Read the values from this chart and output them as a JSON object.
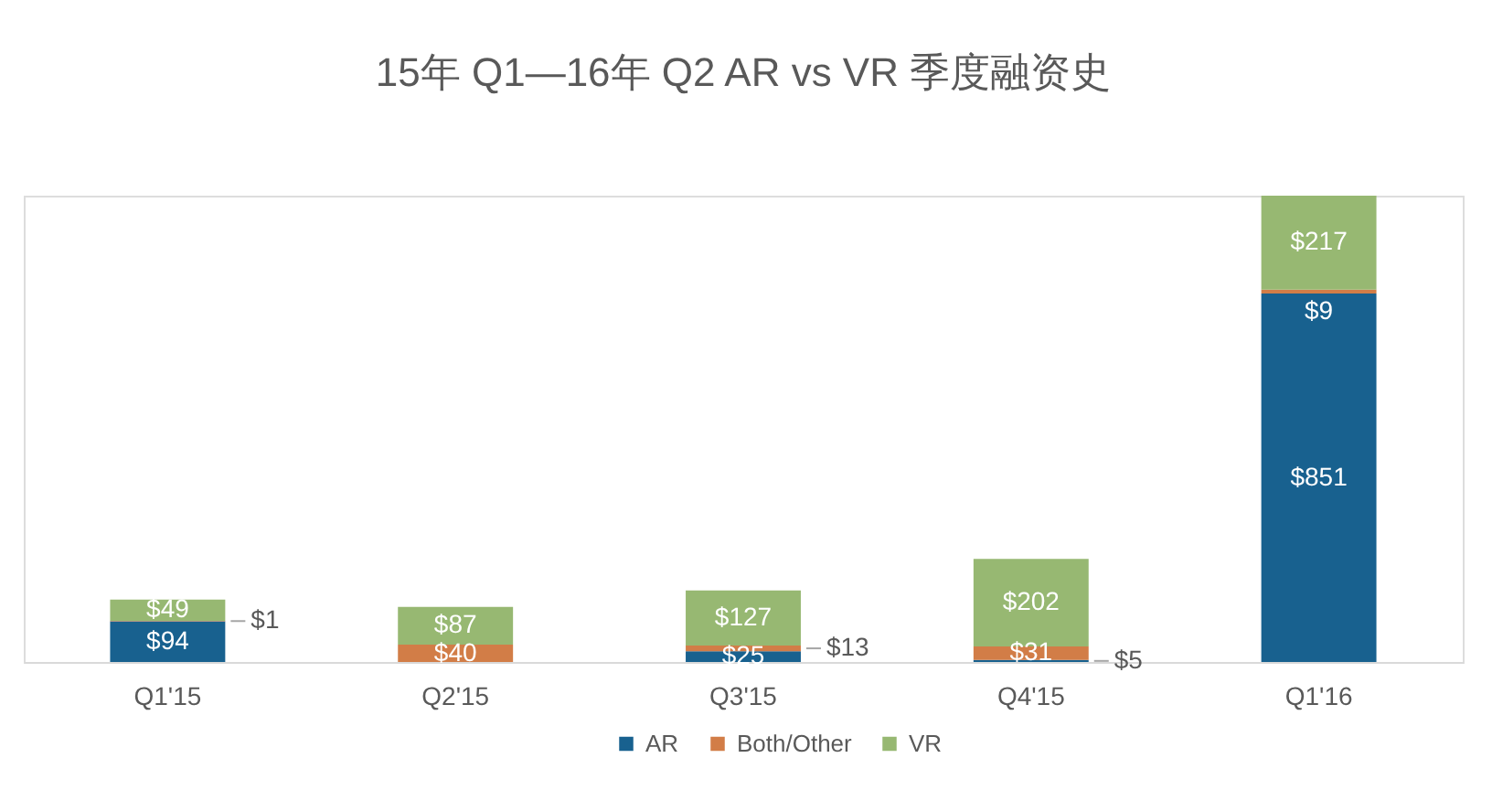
{
  "chart_data": {
    "type": "bar",
    "title": "15年 Q1—16年 Q2 AR vs VR 季度融资史",
    "categories": [
      "Q1'15",
      "Q2'15",
      "Q3'15",
      "Q4'15",
      "Q1'16"
    ],
    "stacked": true,
    "legend": "bottom",
    "series": [
      {
        "name": "AR",
        "color": "#18618f",
        "values": [
          94,
          null,
          25,
          5,
          851
        ],
        "value_labels": [
          "$94",
          null,
          "$25",
          "$5",
          "$851"
        ]
      },
      {
        "name": "Both/Other",
        "color": "#d27d47",
        "values": [
          1,
          40,
          13,
          31,
          9
        ],
        "value_labels": [
          "$1",
          "$40",
          "$13",
          "$31",
          "$9"
        ]
      },
      {
        "name": "VR",
        "color": "#97b872",
        "values": [
          49,
          87,
          127,
          202,
          217
        ],
        "value_labels": [
          "$49",
          "$87",
          "$127",
          "$202",
          "$217"
        ]
      }
    ]
  }
}
